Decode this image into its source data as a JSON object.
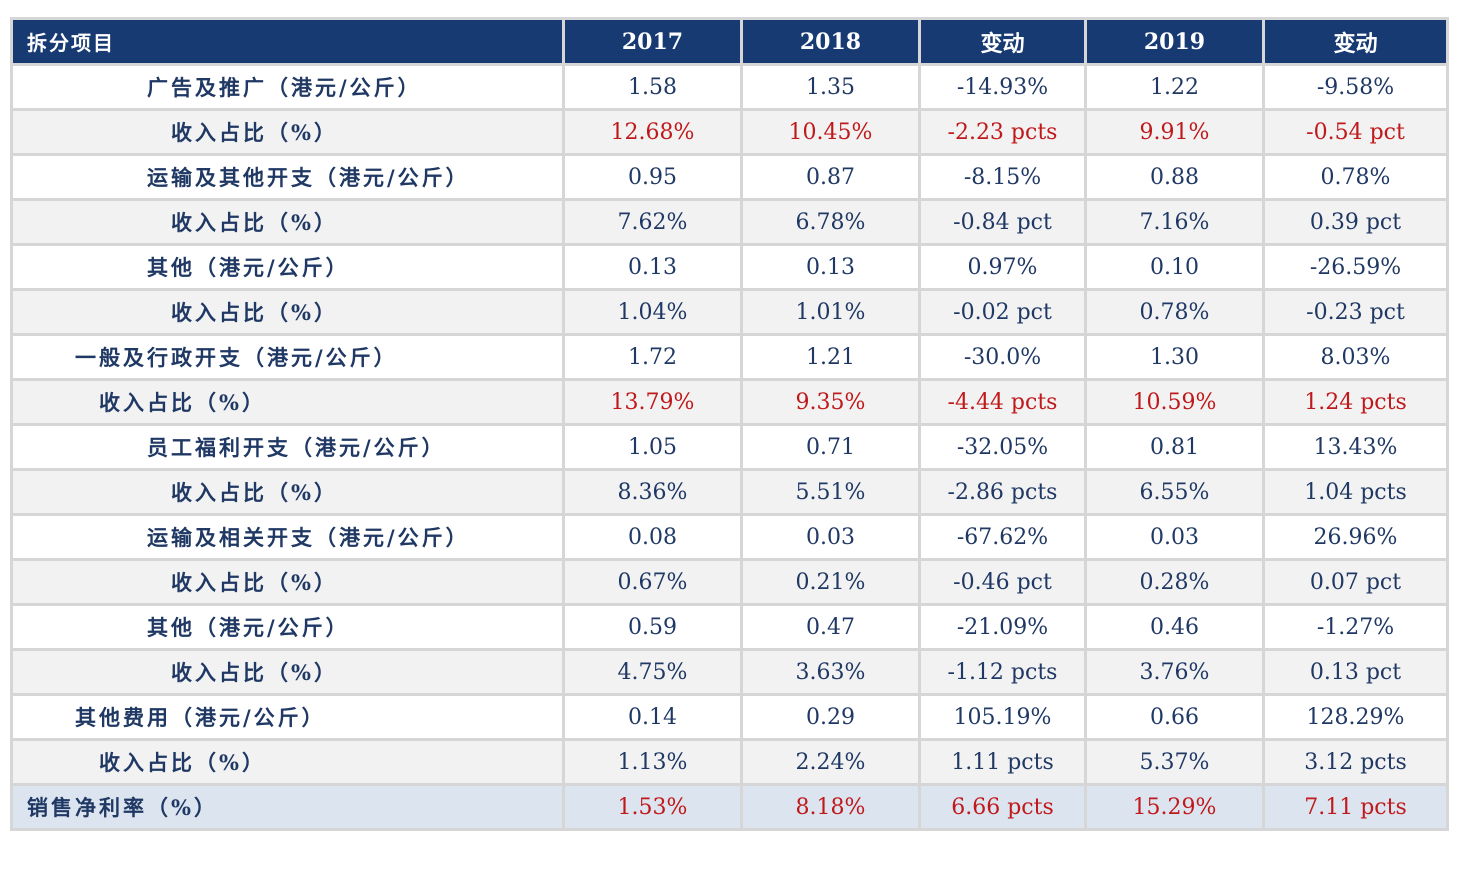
{
  "header": [
    "拆分项目",
    "2017",
    "2018",
    "变动",
    "2019",
    "变动"
  ],
  "rows": [
    {
      "label": "广告及推广（港元/公斤）",
      "indent": 3,
      "values": [
        "1.58",
        "1.35",
        "-14.93%",
        "1.22",
        "-9.58%"
      ],
      "red": false
    },
    {
      "label": "收入占比（%）",
      "indent": 4,
      "values": [
        "12.68%",
        "10.45%",
        "-2.23 pcts",
        "9.91%",
        "-0.54 pct"
      ],
      "red": true
    },
    {
      "label": "运输及其他开支（港元/公斤）",
      "indent": 3,
      "values": [
        "0.95",
        "0.87",
        "-8.15%",
        "0.88",
        "0.78%"
      ],
      "red": false
    },
    {
      "label": "收入占比（%）",
      "indent": 4,
      "values": [
        "7.62%",
        "6.78%",
        "-0.84 pct",
        "7.16%",
        "0.39 pct"
      ],
      "red": false
    },
    {
      "label": "其他（港元/公斤）",
      "indent": 3,
      "values": [
        "0.13",
        "0.13",
        "0.97%",
        "0.10",
        "-26.59%"
      ],
      "red": false
    },
    {
      "label": "收入占比（%）",
      "indent": 4,
      "values": [
        "1.04%",
        "1.01%",
        "-0.02 pct",
        "0.78%",
        "-0.23 pct"
      ],
      "red": false
    },
    {
      "label": "一般及行政开支（港元/公斤）",
      "indent": 1,
      "values": [
        "1.72",
        "1.21",
        "-30.0%",
        "1.30",
        "8.03%"
      ],
      "red": false
    },
    {
      "label": "收入占比（%）",
      "indent": 2,
      "values": [
        "13.79%",
        "9.35%",
        "-4.44 pcts",
        "10.59%",
        "1.24 pcts"
      ],
      "red": true
    },
    {
      "label": "员工福利开支（港元/公斤）",
      "indent": 3,
      "values": [
        "1.05",
        "0.71",
        "-32.05%",
        "0.81",
        "13.43%"
      ],
      "red": false
    },
    {
      "label": "收入占比（%）",
      "indent": 4,
      "values": [
        "8.36%",
        "5.51%",
        "-2.86 pcts",
        "6.55%",
        "1.04 pcts"
      ],
      "red": false
    },
    {
      "label": "运输及相关开支（港元/公斤）",
      "indent": 3,
      "values": [
        "0.08",
        "0.03",
        "-67.62%",
        "0.03",
        "26.96%"
      ],
      "red": false
    },
    {
      "label": "收入占比（%）",
      "indent": 4,
      "values": [
        "0.67%",
        "0.21%",
        "-0.46 pct",
        "0.28%",
        "0.07 pct"
      ],
      "red": false
    },
    {
      "label": "其他（港元/公斤）",
      "indent": 3,
      "values": [
        "0.59",
        "0.47",
        "-21.09%",
        "0.46",
        "-1.27%"
      ],
      "red": false
    },
    {
      "label": "收入占比（%）",
      "indent": 4,
      "values": [
        "4.75%",
        "3.63%",
        "-1.12 pcts",
        "3.76%",
        "0.13 pct"
      ],
      "red": false
    },
    {
      "label": "其他费用（港元/公斤）",
      "indent": 1,
      "values": [
        "0.14",
        "0.29",
        "105.19%",
        "0.66",
        "128.29%"
      ],
      "red": false
    },
    {
      "label": "收入占比（%）",
      "indent": 2,
      "values": [
        "1.13%",
        "2.24%",
        "1.11 pcts",
        "5.37%",
        "3.12 pcts"
      ],
      "red": false
    },
    {
      "label": "销售净利率（%）",
      "indent": 0,
      "values": [
        "1.53%",
        "8.18%",
        "6.66 pcts",
        "15.29%",
        "7.11 pcts"
      ],
      "red": true,
      "final": true
    }
  ],
  "colors": {
    "header_bg": "#173a72",
    "text": "#1f3864",
    "highlight": "#c0191b",
    "final_row_bg": "#dce4ef"
  }
}
